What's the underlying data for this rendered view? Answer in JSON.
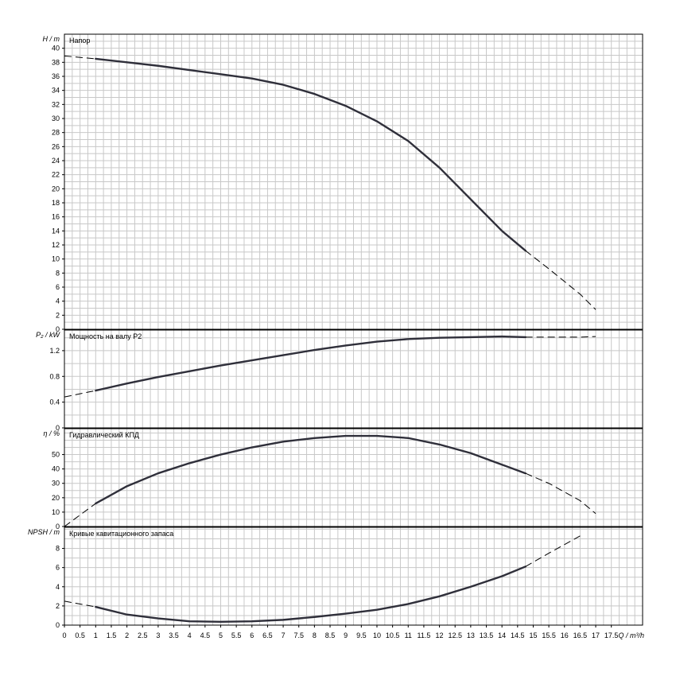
{
  "colors": {
    "background": "#ffffff",
    "grid": "#c8c8c8",
    "frame": "#000000",
    "curve": "#2f2f3a",
    "dash": "#000000"
  },
  "x_axis": {
    "label": "Q / m³/h",
    "min": 0,
    "max": 18.5,
    "ticks": [
      "0",
      "0.5",
      "1",
      "1.5",
      "2",
      "2.5",
      "3",
      "3.5",
      "4",
      "4.5",
      "5",
      "5.5",
      "6",
      "6.5",
      "7",
      "7.5",
      "8",
      "8.5",
      "9",
      "9.5",
      "10",
      "10.5",
      "11",
      "11.5",
      "12",
      "12.5",
      "13",
      "13.5",
      "14",
      "14.5",
      "15",
      "15.5",
      "16",
      "16.5",
      "17",
      "17.5"
    ]
  },
  "chart_data": [
    {
      "type": "line",
      "title": "Напор",
      "ylabel": "H / m",
      "ylim": [
        0,
        42
      ],
      "yticks": [
        "0",
        "2",
        "4",
        "6",
        "8",
        "10",
        "12",
        "14",
        "16",
        "18",
        "20",
        "22",
        "24",
        "26",
        "28",
        "30",
        "32",
        "34",
        "36",
        "38",
        "40"
      ],
      "grid": true,
      "series": [
        {
          "style": "dashed",
          "x": [
            0,
            1
          ],
          "y": [
            38.9,
            38.5
          ]
        },
        {
          "style": "solid",
          "x": [
            1,
            2,
            3,
            4,
            5,
            6,
            7,
            8,
            9,
            10,
            11,
            12,
            13,
            14,
            14.75
          ],
          "y": [
            38.5,
            38.0,
            37.5,
            36.9,
            36.3,
            35.7,
            34.8,
            33.5,
            31.8,
            29.6,
            26.8,
            23.0,
            18.5,
            14.0,
            11.2
          ]
        },
        {
          "style": "dashed",
          "x": [
            14.75,
            15.5,
            16.5,
            17
          ],
          "y": [
            11.2,
            8.6,
            5.0,
            2.8
          ]
        }
      ]
    },
    {
      "type": "line",
      "title": "Мощность на валу P2",
      "ylabel": "P₂ / kW",
      "ylim": [
        0,
        1.52
      ],
      "yticks": [
        "0",
        "0.4",
        "0.8",
        "1.2"
      ],
      "grid": true,
      "series": [
        {
          "style": "dashed",
          "x": [
            0,
            1
          ],
          "y": [
            0.48,
            0.58
          ]
        },
        {
          "style": "solid",
          "x": [
            1,
            2,
            3,
            4,
            5,
            6,
            7,
            8,
            9,
            10,
            11,
            12,
            13,
            14,
            14.75
          ],
          "y": [
            0.58,
            0.69,
            0.79,
            0.88,
            0.97,
            1.05,
            1.13,
            1.21,
            1.28,
            1.34,
            1.38,
            1.4,
            1.41,
            1.42,
            1.41
          ]
        },
        {
          "style": "dashed",
          "x": [
            14.75,
            15.5,
            16.5,
            17
          ],
          "y": [
            1.41,
            1.41,
            1.41,
            1.42
          ]
        }
      ]
    },
    {
      "type": "line",
      "title": "Гидравлический КПД",
      "ylabel": "η / %",
      "ylim": [
        0,
        68
      ],
      "yticks": [
        "0",
        "10",
        "20",
        "30",
        "40",
        "50"
      ],
      "grid": true,
      "series": [
        {
          "style": "dashed",
          "x": [
            0,
            1
          ],
          "y": [
            0,
            16
          ]
        },
        {
          "style": "solid",
          "x": [
            1,
            2,
            3,
            4,
            5,
            6,
            7,
            8,
            9,
            10,
            11,
            12,
            13,
            14,
            14.75
          ],
          "y": [
            16,
            28,
            37,
            44,
            50,
            55,
            59,
            61.5,
            63,
            63,
            61.5,
            57,
            51,
            43,
            37
          ]
        },
        {
          "style": "dashed",
          "x": [
            14.75,
            15.5,
            16.5,
            17
          ],
          "y": [
            37,
            30,
            18,
            9
          ]
        }
      ]
    },
    {
      "type": "line",
      "title": "Кривые кавитационного запаса",
      "ylabel": "NPSH / m",
      "ylim": [
        0,
        10.2
      ],
      "yticks": [
        "0",
        "2",
        "4",
        "6",
        "8"
      ],
      "grid": true,
      "series": [
        {
          "style": "dashed",
          "x": [
            0,
            1
          ],
          "y": [
            2.5,
            1.9
          ]
        },
        {
          "style": "solid",
          "x": [
            1,
            2,
            3,
            4,
            5,
            6,
            7,
            8,
            9,
            10,
            11,
            12,
            13,
            14,
            14.75
          ],
          "y": [
            1.9,
            1.1,
            0.7,
            0.4,
            0.35,
            0.4,
            0.55,
            0.85,
            1.2,
            1.6,
            2.2,
            3.0,
            4.0,
            5.1,
            6.1
          ]
        },
        {
          "style": "dashed",
          "x": [
            14.75,
            15.5,
            16.5
          ],
          "y": [
            6.1,
            7.5,
            9.3
          ]
        }
      ]
    }
  ]
}
